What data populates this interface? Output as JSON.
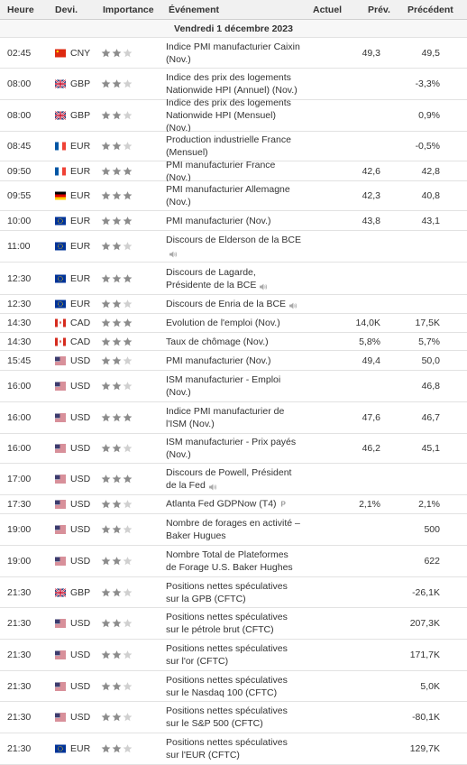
{
  "header": {
    "time": "Heure",
    "currency": "Devi.",
    "importance": "Importance",
    "event": "Événement",
    "actual": "Actuel",
    "previous_forecast": "Prév.",
    "previous": "Précédent"
  },
  "date_label": "Vendredi 1 décembre 2023",
  "rows": [
    {
      "time": "02:45",
      "flag": "cn",
      "currency": "CNY",
      "stars": 2,
      "event": "Indice PMI manufacturier Caixin (Nov.)",
      "actual": "",
      "forecast": "49,3",
      "previous": "49,5",
      "speech": false,
      "prelim": false,
      "h": 34
    },
    {
      "time": "08:00",
      "flag": "gb",
      "currency": "GBP",
      "stars": 2,
      "event": "Indice des prix des logements Nationwide HPI (Annuel) (Nov.)",
      "actual": "",
      "forecast": "",
      "previous": "-3,3%",
      "speech": false,
      "prelim": false,
      "h": 35
    },
    {
      "time": "08:00",
      "flag": "gb",
      "currency": "GBP",
      "stars": 2,
      "event": "Indice des prix des logements Nationwide HPI (Mensuel) (Nov.)",
      "actual": "",
      "forecast": "",
      "previous": "0,9%",
      "speech": false,
      "prelim": false,
      "h": 35
    },
    {
      "time": "08:45",
      "flag": "fr",
      "currency": "EUR",
      "stars": 2,
      "event": "Production industrielle France (Mensuel)",
      "actual": "",
      "forecast": "",
      "previous": "-0,5%",
      "speech": false,
      "prelim": false,
      "h": 33
    },
    {
      "time": "09:50",
      "flag": "fr",
      "currency": "EUR",
      "stars": 3,
      "event": "PMI manufacturier France (Nov.)",
      "actual": "",
      "forecast": "42,6",
      "previous": "42,8",
      "speech": false,
      "prelim": false,
      "h": 22
    },
    {
      "time": "09:55",
      "flag": "de",
      "currency": "EUR",
      "stars": 3,
      "event": "PMI manufacturier Allemagne (Nov.)",
      "actual": "",
      "forecast": "42,3",
      "previous": "40,8",
      "speech": false,
      "prelim": false,
      "h": 33
    },
    {
      "time": "10:00",
      "flag": "eu",
      "currency": "EUR",
      "stars": 3,
      "event": "PMI manufacturier (Nov.)",
      "actual": "",
      "forecast": "43,8",
      "previous": "43,1",
      "speech": false,
      "prelim": false,
      "h": 22
    },
    {
      "time": "11:00",
      "flag": "eu",
      "currency": "EUR",
      "stars": 2,
      "event": "Discours de Elderson de la BCE",
      "actual": "",
      "forecast": "",
      "previous": "",
      "speech": true,
      "prelim": false,
      "h": 35
    },
    {
      "time": "12:30",
      "flag": "eu",
      "currency": "EUR",
      "stars": 3,
      "event": "Discours de Lagarde, Présidente de la BCE",
      "actual": "",
      "forecast": "",
      "previous": "",
      "speech": true,
      "prelim": false,
      "h": 36
    },
    {
      "time": "12:30",
      "flag": "eu",
      "currency": "EUR",
      "stars": 2,
      "event": "Discours de Enria de la BCE",
      "actual": "",
      "forecast": "",
      "previous": "",
      "speech": true,
      "prelim": false,
      "h": 21
    },
    {
      "time": "14:30",
      "flag": "ca",
      "currency": "CAD",
      "stars": 3,
      "event": "Evolution de l'emploi (Nov.)",
      "actual": "",
      "forecast": "14,0K",
      "previous": "17,5K",
      "speech": false,
      "prelim": false,
      "h": 21
    },
    {
      "time": "14:30",
      "flag": "ca",
      "currency": "CAD",
      "stars": 3,
      "event": "Taux de chômage (Nov.)",
      "actual": "",
      "forecast": "5,8%",
      "previous": "5,7%",
      "speech": false,
      "prelim": false,
      "h": 20
    },
    {
      "time": "15:45",
      "flag": "us",
      "currency": "USD",
      "stars": 2,
      "event": "PMI manufacturier (Nov.)",
      "actual": "",
      "forecast": "49,4",
      "previous": "50,0",
      "speech": false,
      "prelim": false,
      "h": 22
    },
    {
      "time": "16:00",
      "flag": "us",
      "currency": "USD",
      "stars": 2,
      "event": "ISM manufacturier - Emploi (Nov.)",
      "actual": "",
      "forecast": "",
      "previous": "46,8",
      "speech": false,
      "prelim": false,
      "h": 35
    },
    {
      "time": "16:00",
      "flag": "us",
      "currency": "USD",
      "stars": 3,
      "event": "Indice PMI manufacturier de l'ISM (Nov.)",
      "actual": "",
      "forecast": "47,6",
      "previous": "46,7",
      "speech": false,
      "prelim": false,
      "h": 35
    },
    {
      "time": "16:00",
      "flag": "us",
      "currency": "USD",
      "stars": 2,
      "event": "ISM manufacturier - Prix payés (Nov.)",
      "actual": "",
      "forecast": "46,2",
      "previous": "45,1",
      "speech": false,
      "prelim": false,
      "h": 33
    },
    {
      "time": "17:00",
      "flag": "us",
      "currency": "USD",
      "stars": 3,
      "event": "Discours de Powell, Président de la Fed",
      "actual": "",
      "forecast": "",
      "previous": "",
      "speech": true,
      "prelim": false,
      "h": 35
    },
    {
      "time": "17:30",
      "flag": "us",
      "currency": "USD",
      "stars": 2,
      "event": "Atlanta Fed GDPNow (T4)",
      "actual": "",
      "forecast": "2,1%",
      "previous": "2,1%",
      "speech": false,
      "prelim": true,
      "h": 21
    },
    {
      "time": "19:00",
      "flag": "us",
      "currency": "USD",
      "stars": 2,
      "event": "Nombre de forages en activité – Baker Hugues",
      "actual": "",
      "forecast": "",
      "previous": "500",
      "speech": false,
      "prelim": false,
      "h": 35
    },
    {
      "time": "19:00",
      "flag": "us",
      "currency": "USD",
      "stars": 2,
      "event": "Nombre Total de Plateformes de Forage U.S. Baker Hughes",
      "actual": "",
      "forecast": "",
      "previous": "622",
      "speech": false,
      "prelim": false,
      "h": 35
    },
    {
      "time": "21:30",
      "flag": "gb",
      "currency": "GBP",
      "stars": 2,
      "event": "Positions nettes spéculatives sur la GPB (CFTC)",
      "actual": "",
      "forecast": "",
      "previous": "-26,1K",
      "speech": false,
      "prelim": false,
      "h": 34
    },
    {
      "time": "21:30",
      "flag": "us",
      "currency": "USD",
      "stars": 2,
      "event": "Positions nettes spéculatives sur le pétrole brut (CFTC)",
      "actual": "",
      "forecast": "",
      "previous": "207,3K",
      "speech": false,
      "prelim": false,
      "h": 35
    },
    {
      "time": "21:30",
      "flag": "us",
      "currency": "USD",
      "stars": 2,
      "event": "Positions nettes spéculatives sur l'or (CFTC)",
      "actual": "",
      "forecast": "",
      "previous": "171,7K",
      "speech": false,
      "prelim": false,
      "h": 35
    },
    {
      "time": "21:30",
      "flag": "us",
      "currency": "USD",
      "stars": 2,
      "event": "Positions nettes spéculatives sur le Nasdaq 100 (CFTC)",
      "actual": "",
      "forecast": "",
      "previous": "5,0K",
      "speech": false,
      "prelim": false,
      "h": 34
    },
    {
      "time": "21:30",
      "flag": "us",
      "currency": "USD",
      "stars": 2,
      "event": "Positions nettes spéculatives sur le S&P 500 (CFTC)",
      "actual": "",
      "forecast": "",
      "previous": "-80,1K",
      "speech": false,
      "prelim": false,
      "h": 35
    },
    {
      "time": "21:30",
      "flag": "eu",
      "currency": "EUR",
      "stars": 2,
      "event": "Positions nettes spéculatives sur l'EUR (CFTC)",
      "actual": "",
      "forecast": "",
      "previous": "129,7K",
      "speech": false,
      "prelim": false,
      "h": 35
    }
  ],
  "prelim_label": "P",
  "colors": {
    "star_on": "#8c8c8c",
    "star_off": "#d0d0d0",
    "header_bg": "#f1f1f1",
    "border": "#e2e2e2"
  }
}
